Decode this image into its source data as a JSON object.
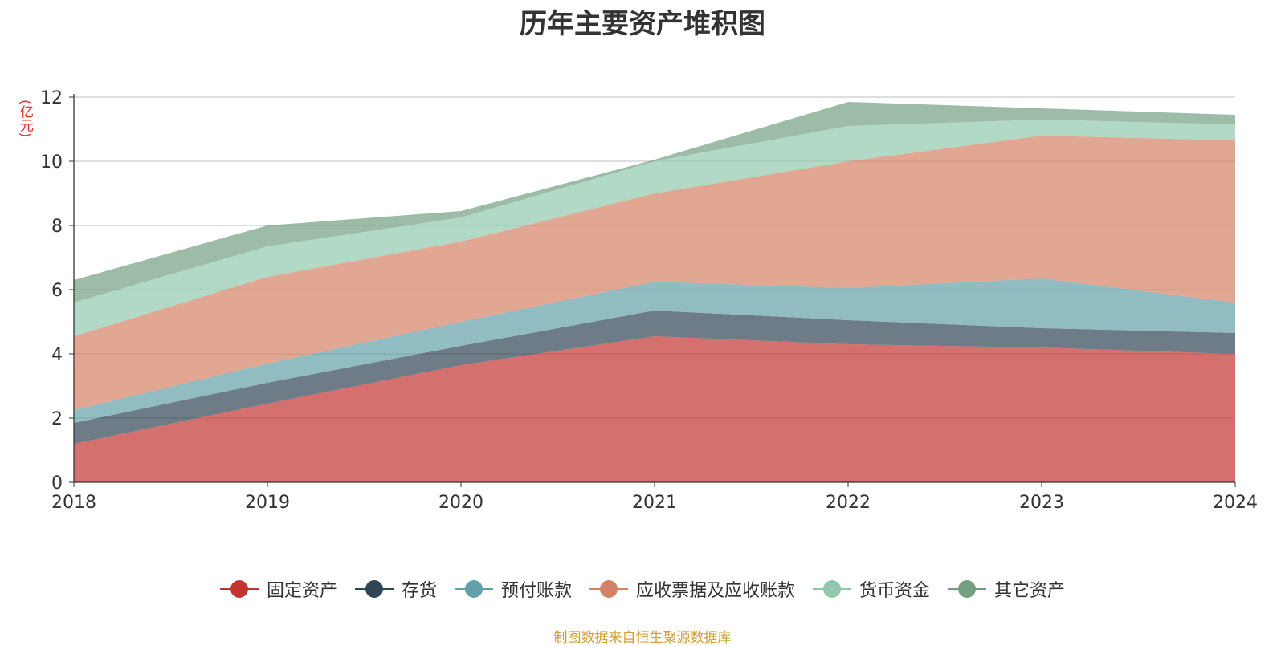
{
  "chart_data": {
    "type": "area",
    "stacked": true,
    "title": "历年主要资产堆积图",
    "ylabel": "(亿元)",
    "x": [
      "2018",
      "2019",
      "2020",
      "2021",
      "2022",
      "2023",
      "2024"
    ],
    "ylim": [
      0,
      12
    ],
    "yticks": [
      "0",
      "2",
      "4",
      "6",
      "8",
      "10",
      "12"
    ],
    "grid": true,
    "legend_position": "bottom",
    "series": [
      {
        "name": "固定资产",
        "color": "#c23531",
        "values": [
          1.2,
          2.45,
          3.65,
          4.55,
          4.3,
          4.2,
          4.0
        ]
      },
      {
        "name": "存货",
        "color": "#2f4554",
        "values": [
          0.65,
          0.65,
          0.6,
          0.8,
          0.75,
          0.6,
          0.65
        ]
      },
      {
        "name": "预付账款",
        "color": "#61a0a8",
        "values": [
          0.4,
          0.6,
          0.75,
          0.9,
          1.0,
          1.55,
          0.95
        ]
      },
      {
        "name": "应收票据及应收账款",
        "color": "#d48265",
        "values": [
          2.3,
          2.7,
          2.5,
          2.75,
          3.95,
          4.45,
          5.05
        ]
      },
      {
        "name": "货币资金",
        "color": "#91c7ae",
        "values": [
          1.05,
          0.95,
          0.75,
          1.0,
          1.1,
          0.5,
          0.5
        ]
      },
      {
        "name": "其它资产",
        "color": "#749f83",
        "values": [
          0.7,
          0.65,
          0.2,
          0.05,
          0.75,
          0.35,
          0.3
        ]
      }
    ]
  },
  "source_note": "制图数据来自恒生聚源数据库"
}
